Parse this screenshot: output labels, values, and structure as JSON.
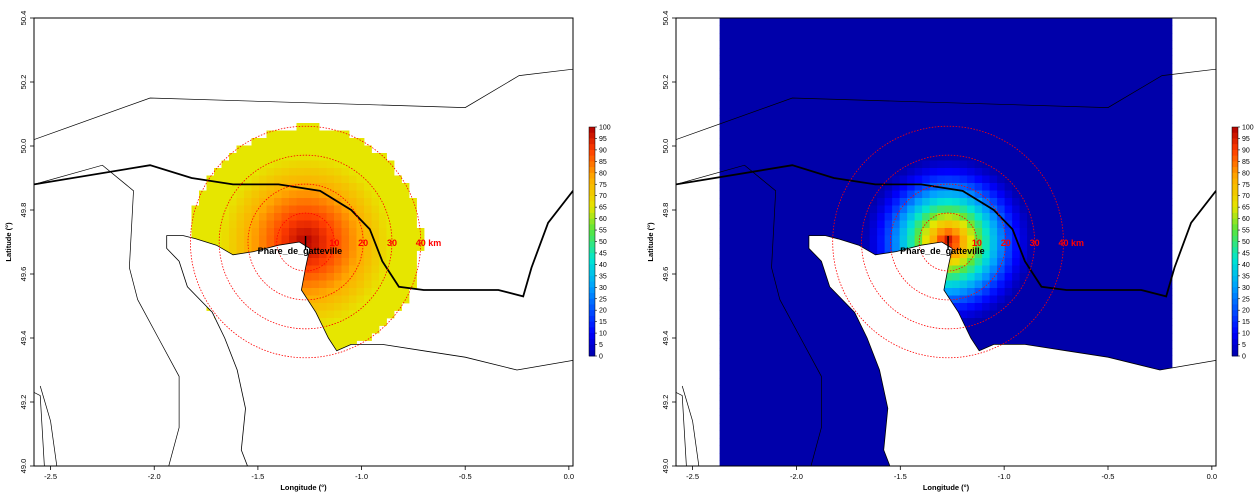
{
  "panels": [
    {
      "id": "left",
      "xlabel": "Longitude (°)",
      "ylabel": "Latitude (°)",
      "x_ticks": [
        "-2.5",
        "-2.0",
        "-1.5",
        "-1.0",
        "-0.5",
        "0.0"
      ],
      "y_ticks": [
        "49.0",
        "49.2",
        "49.4",
        "49.6",
        "49.8",
        "50.0",
        "50.2",
        "50.4"
      ],
      "site_label": "Phare_de_gatteville",
      "ring_labels": [
        "10",
        "20",
        "30",
        "40 km"
      ],
      "colorbar_ticks": [
        "100",
        "95",
        "90",
        "85",
        "80",
        "75",
        "70",
        "65",
        "60",
        "55",
        "50",
        "45",
        "40",
        "35",
        "30",
        "25",
        "20",
        "15",
        "10",
        "5",
        "0"
      ]
    },
    {
      "id": "right",
      "xlabel": "Longitude (°)",
      "ylabel": "Latitude (°)",
      "x_ticks": [
        "-2.5",
        "-2.0",
        "-1.5",
        "-1.0",
        "-0.5",
        "0.0"
      ],
      "y_ticks": [
        "49.0",
        "49.2",
        "49.4",
        "49.6",
        "49.8",
        "50.0",
        "50.2",
        "50.4"
      ],
      "site_label": "Phare_de_gatteville",
      "ring_labels": [
        "10",
        "20",
        "30",
        "40 km"
      ],
      "colorbar_ticks": [
        "100",
        "95",
        "90",
        "85",
        "80",
        "75",
        "70",
        "65",
        "60",
        "55",
        "50",
        "45",
        "40",
        "35",
        "30",
        "25",
        "20",
        "15",
        "10",
        "5",
        "0"
      ]
    }
  ],
  "chart_data": [
    {
      "type": "heatmap",
      "xlabel": "Longitude (°)",
      "ylabel": "Latitude (°)",
      "xlim": [
        -2.58,
        0.02
      ],
      "ylim": [
        49.0,
        50.4
      ],
      "site": {
        "name": "Phare_de_gatteville",
        "lon": -1.27,
        "lat": 49.7
      },
      "rings_km": [
        10,
        20,
        30,
        40
      ],
      "color_range": [
        0,
        100
      ],
      "field_extent_km": 40,
      "value_at_center": 100,
      "value_at_edge": 65
    },
    {
      "type": "heatmap",
      "xlabel": "Longitude (°)",
      "ylabel": "Latitude (°)",
      "xlim": [
        -2.58,
        0.02
      ],
      "ylim": [
        49.0,
        50.4
      ],
      "site": {
        "name": "Phare_de_gatteville",
        "lon": -1.27,
        "lat": 49.7
      },
      "rings_km": [
        10,
        20,
        30,
        40
      ],
      "color_range": [
        0,
        100
      ],
      "field_lon_range": [
        -2.37,
        -0.19
      ],
      "value_at_center": 100,
      "background_value": 0
    }
  ]
}
